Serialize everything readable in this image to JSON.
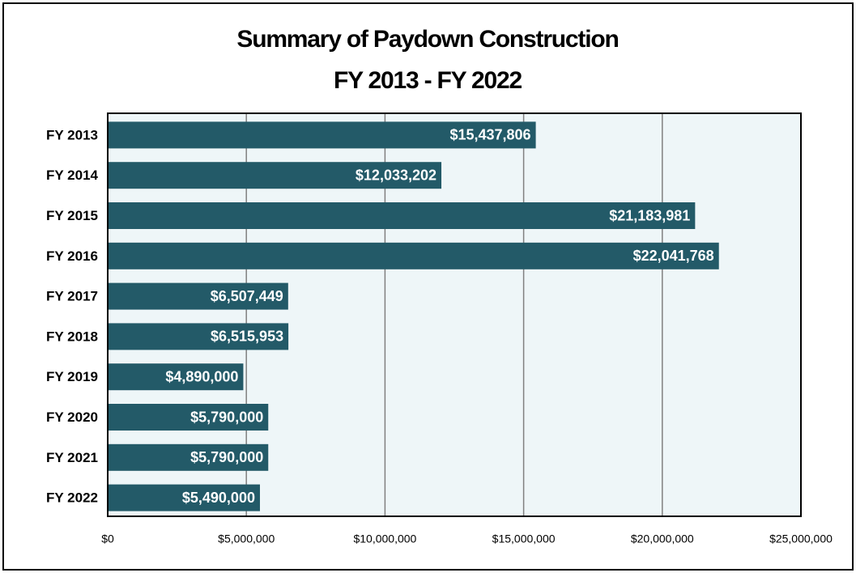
{
  "chart_data": {
    "type": "barh",
    "title": "Summary of Paydown Construction",
    "subtitle": "FY 2013 - FY 2022",
    "categories": [
      "FY 2013",
      "FY 2014",
      "FY 2015",
      "FY 2016",
      "FY 2017",
      "FY 2018",
      "FY 2019",
      "FY 2020",
      "FY 2021",
      "FY 2022"
    ],
    "values": [
      15437806,
      12033202,
      21183981,
      22041768,
      6507449,
      6515953,
      4890000,
      5790000,
      5790000,
      5490000
    ],
    "value_labels": [
      "$15,437,806",
      "$12,033,202",
      "$21,183,981",
      "$22,041,768",
      "$6,507,449",
      "$6,515,953",
      "$4,890,000",
      "$5,790,000",
      "$5,790,000",
      "$5,490,000"
    ],
    "color": "#235a68",
    "xlim": [
      0,
      25000000
    ],
    "xticks": [
      {
        "value": 0,
        "label": "$0"
      },
      {
        "value": 5000000,
        "label": "$5,000,000"
      },
      {
        "value": 10000000,
        "label": "$10,000,000"
      },
      {
        "value": 15000000,
        "label": "$15,000,000"
      },
      {
        "value": 20000000,
        "label": "$20,000,000"
      },
      {
        "value": 25000000,
        "label": "$25,000,000"
      }
    ],
    "grid": true
  }
}
